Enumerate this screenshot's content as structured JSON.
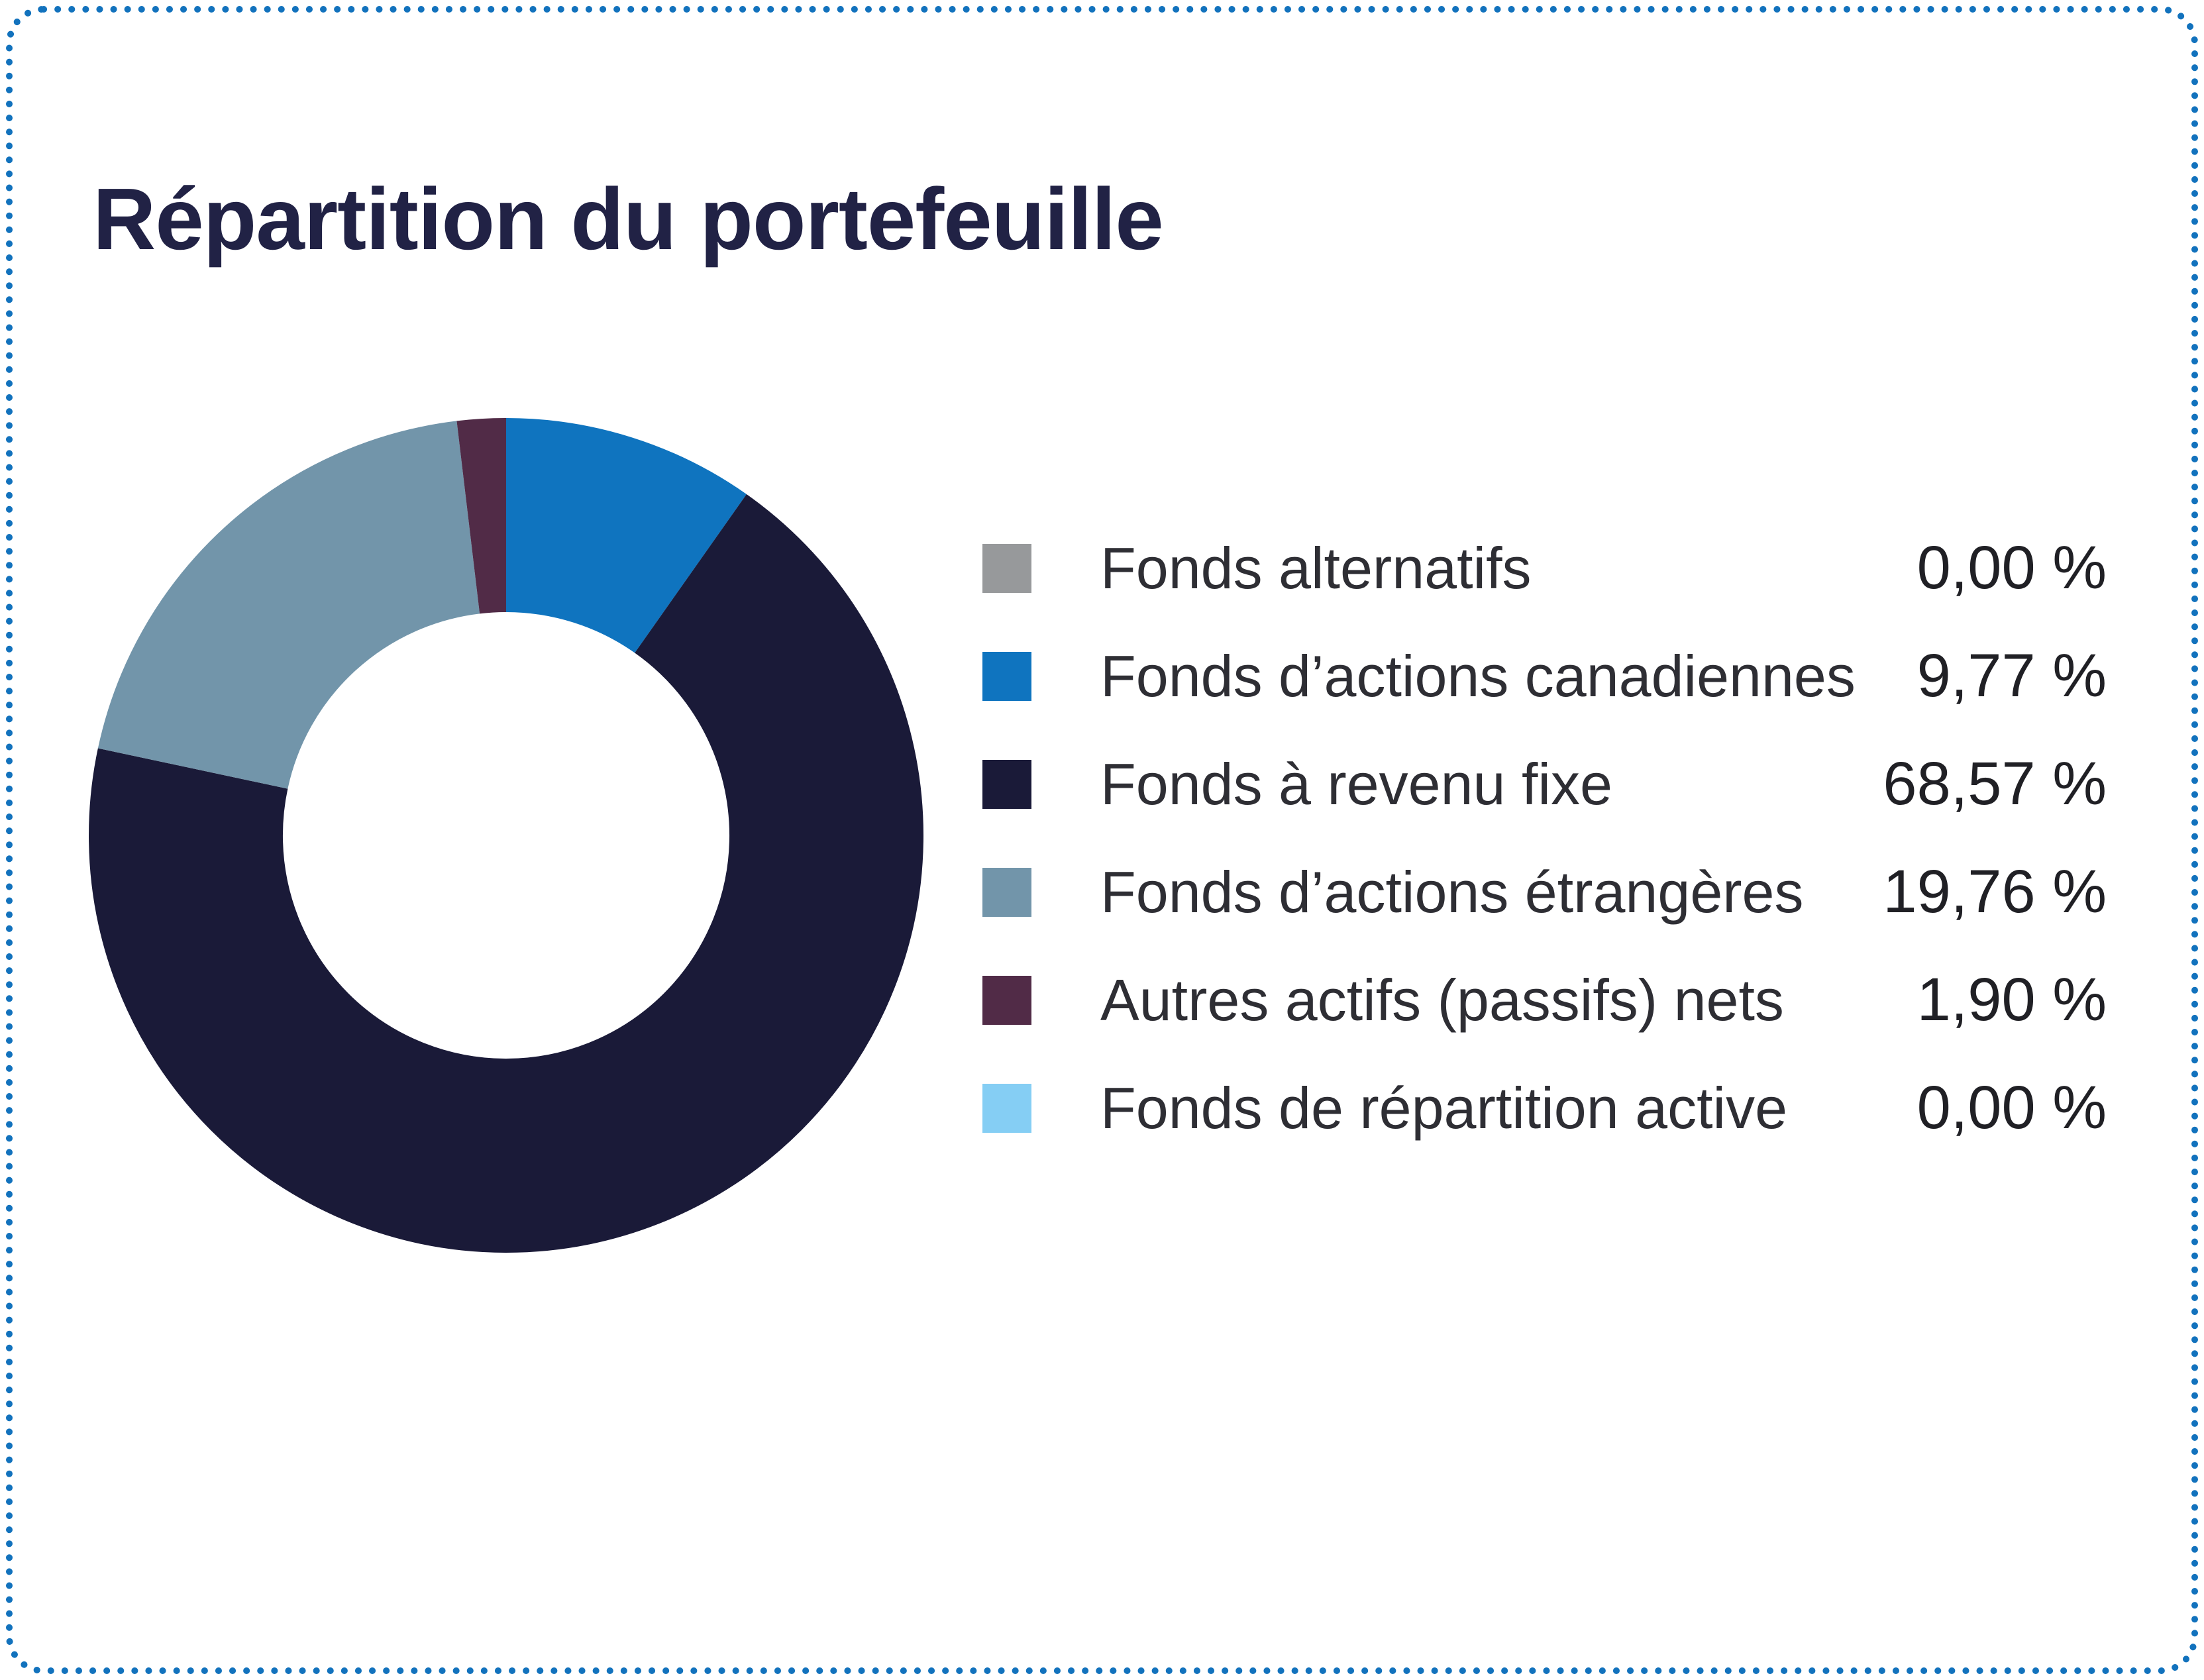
{
  "card": {
    "title": "Répartition du portefeuille",
    "border_color": "#1272BD",
    "background_color": "#FFFFFF",
    "title_color": "#212245"
  },
  "chart_data": {
    "type": "pie",
    "variant": "donut",
    "title": "Répartition du portefeuille",
    "unit": "%",
    "start_angle_deg": 0,
    "direction": "clockwise",
    "inner_radius_ratio": 0.535,
    "legend_position": "right",
    "segments": [
      {
        "label": "Fonds alternatifs",
        "value": 0.0,
        "display": "0,00 %",
        "color": "#97999B"
      },
      {
        "label": "Fonds d’actions canadiennes",
        "value": 9.77,
        "display": "9,77 %",
        "color": "#0F74BF"
      },
      {
        "label": "Fonds à revenu fixe",
        "value": 68.57,
        "display": "68,57 %",
        "color": "#1A1A38"
      },
      {
        "label": "Fonds d’actions étrangères",
        "value": 19.76,
        "display": "19,76 %",
        "color": "#7295AA"
      },
      {
        "label": "Autres actifs (passifs) nets",
        "value": 1.9,
        "display": "1,90 %",
        "color": "#512B47"
      },
      {
        "label": "Fonds de répartition active",
        "value": 0.0,
        "display": "0,00 %",
        "color": "#85CEF4"
      }
    ]
  }
}
